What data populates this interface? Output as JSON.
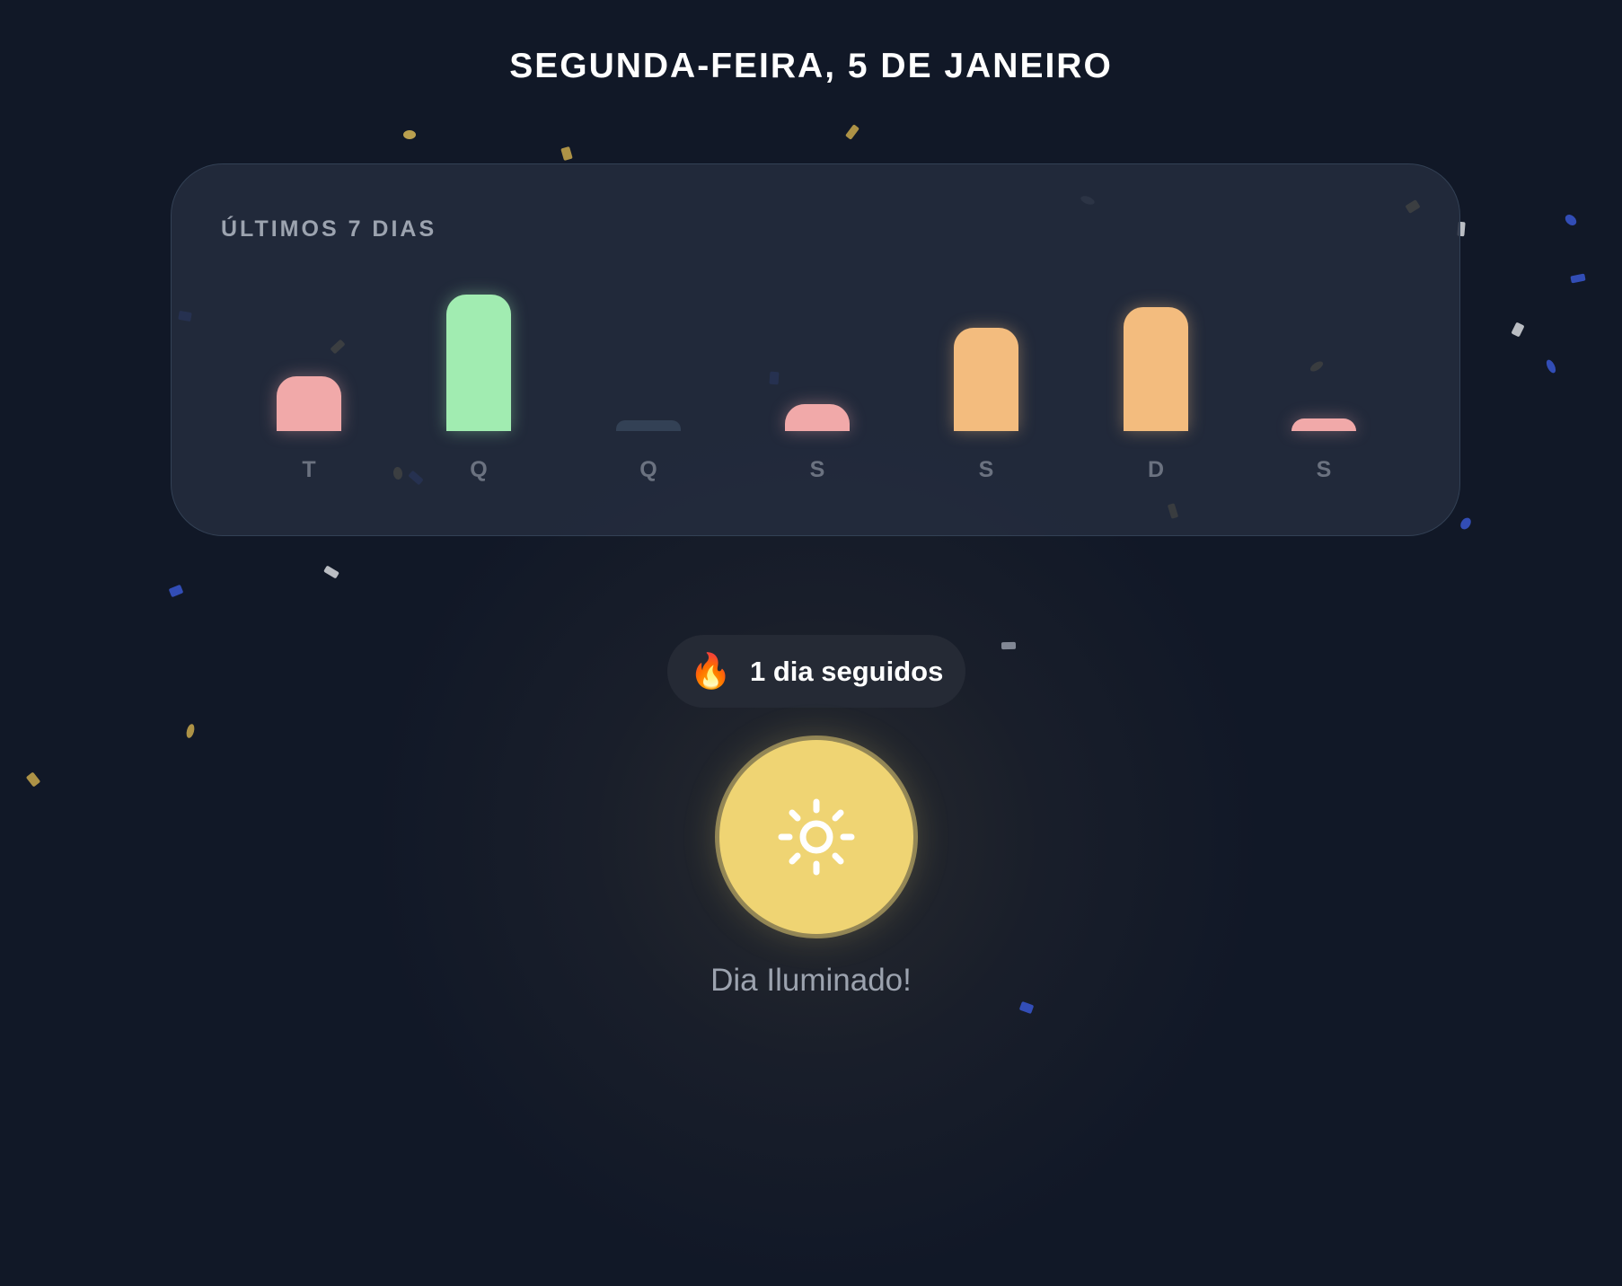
{
  "header": {
    "date_title": "SEGUNDA-FEIRA, 5 DE JANEIRO"
  },
  "chart_data": {
    "type": "bar",
    "title": "ÚLTIMOS 7 DIAS",
    "categories": [
      "T",
      "Q",
      "Q",
      "S",
      "S",
      "D",
      "S"
    ],
    "values": [
      0.38,
      0.95,
      0.0,
      0.19,
      0.72,
      0.86,
      0.09
    ],
    "colors": [
      "#f1a9a9",
      "#a1ecb1",
      "#334155",
      "#f1a9a9",
      "#f3bc7e",
      "#f3bc7e",
      "#f1a9a9"
    ],
    "ylim": [
      0,
      1
    ]
  },
  "streak": {
    "icon": "fire-icon",
    "label": "1 dia seguidos"
  },
  "sun_button": {
    "icon": "sun-icon",
    "color": "#efd473"
  },
  "caption": "Dia Iluminado!"
}
